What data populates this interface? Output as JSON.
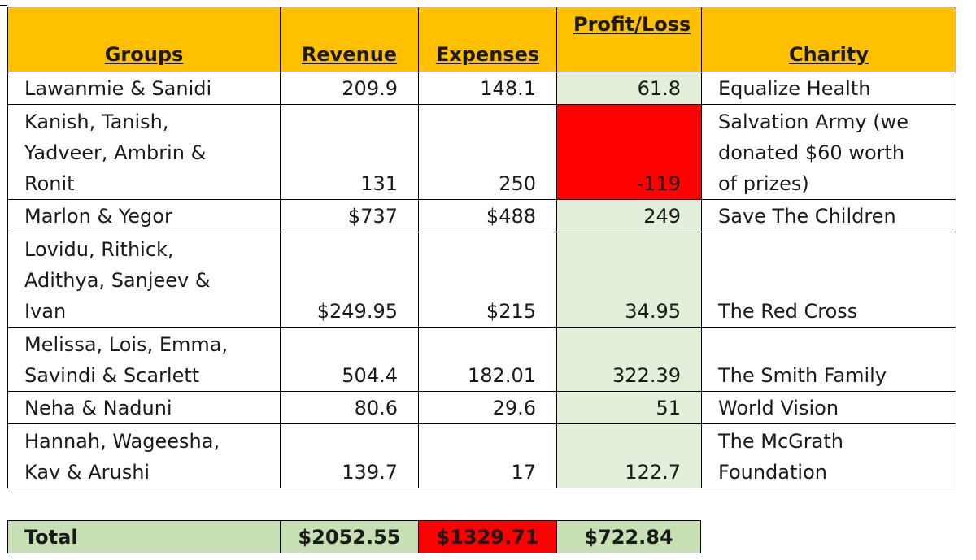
{
  "headers": {
    "groups": "Groups",
    "revenue": "Revenue",
    "expenses": "Expenses",
    "profit_loss": "Profit/Loss",
    "charity": "Charity"
  },
  "rows": [
    {
      "groups": "Lawanmie & Sanidi",
      "revenue": "209.9",
      "expenses": "148.1",
      "profit_loss": "61.8",
      "charity": "Equalize Health"
    },
    {
      "groups_lines": [
        "Kanish, Tanish,",
        "Yadveer, Ambrin &",
        "Ronit"
      ],
      "revenue": "131",
      "expenses": "250",
      "profit_loss": "-119",
      "charity_lines": [
        "Salvation Army (we",
        "donated $60  worth",
        "of prizes)"
      ]
    },
    {
      "groups": "Marlon & Yegor",
      "revenue": "$737",
      "expenses": "$488",
      "profit_loss": "249",
      "charity": "Save The Children"
    },
    {
      "groups_lines": [
        "Lovidu, Rithick,",
        "Adithya, Sanjeev &",
        "Ivan"
      ],
      "revenue": "$249.95",
      "expenses": "$215",
      "profit_loss": "34.95",
      "charity": "The Red Cross"
    },
    {
      "groups_lines": [
        "Melissa, Lois, Emma,",
        "Savindi & Scarlett"
      ],
      "revenue": "504.4",
      "expenses": "182.01",
      "profit_loss": "322.39",
      "charity": "The Smith Family"
    },
    {
      "groups": "Neha & Naduni",
      "revenue": "80.6",
      "expenses": "29.6",
      "profit_loss": "51",
      "charity": "World Vision"
    },
    {
      "groups_lines": [
        "Hannah, Wageesha,",
        "Kav & Arushi"
      ],
      "revenue": "139.7",
      "expenses": "17",
      "profit_loss": "122.7",
      "charity_lines": [
        "The McGrath",
        "Foundation"
      ]
    }
  ],
  "total": {
    "label": "Total",
    "revenue": "$2052.55",
    "expenses": "$1329.71",
    "profit_loss": "$722.84"
  },
  "colors": {
    "header_fill": "#ffc000",
    "profit_fill": "#e2efda",
    "loss_fill": "#ff0000",
    "total_fill": "#c6e0b4",
    "spellcheck_underline": "#e02020",
    "grammar_underline": "#4472c4"
  }
}
